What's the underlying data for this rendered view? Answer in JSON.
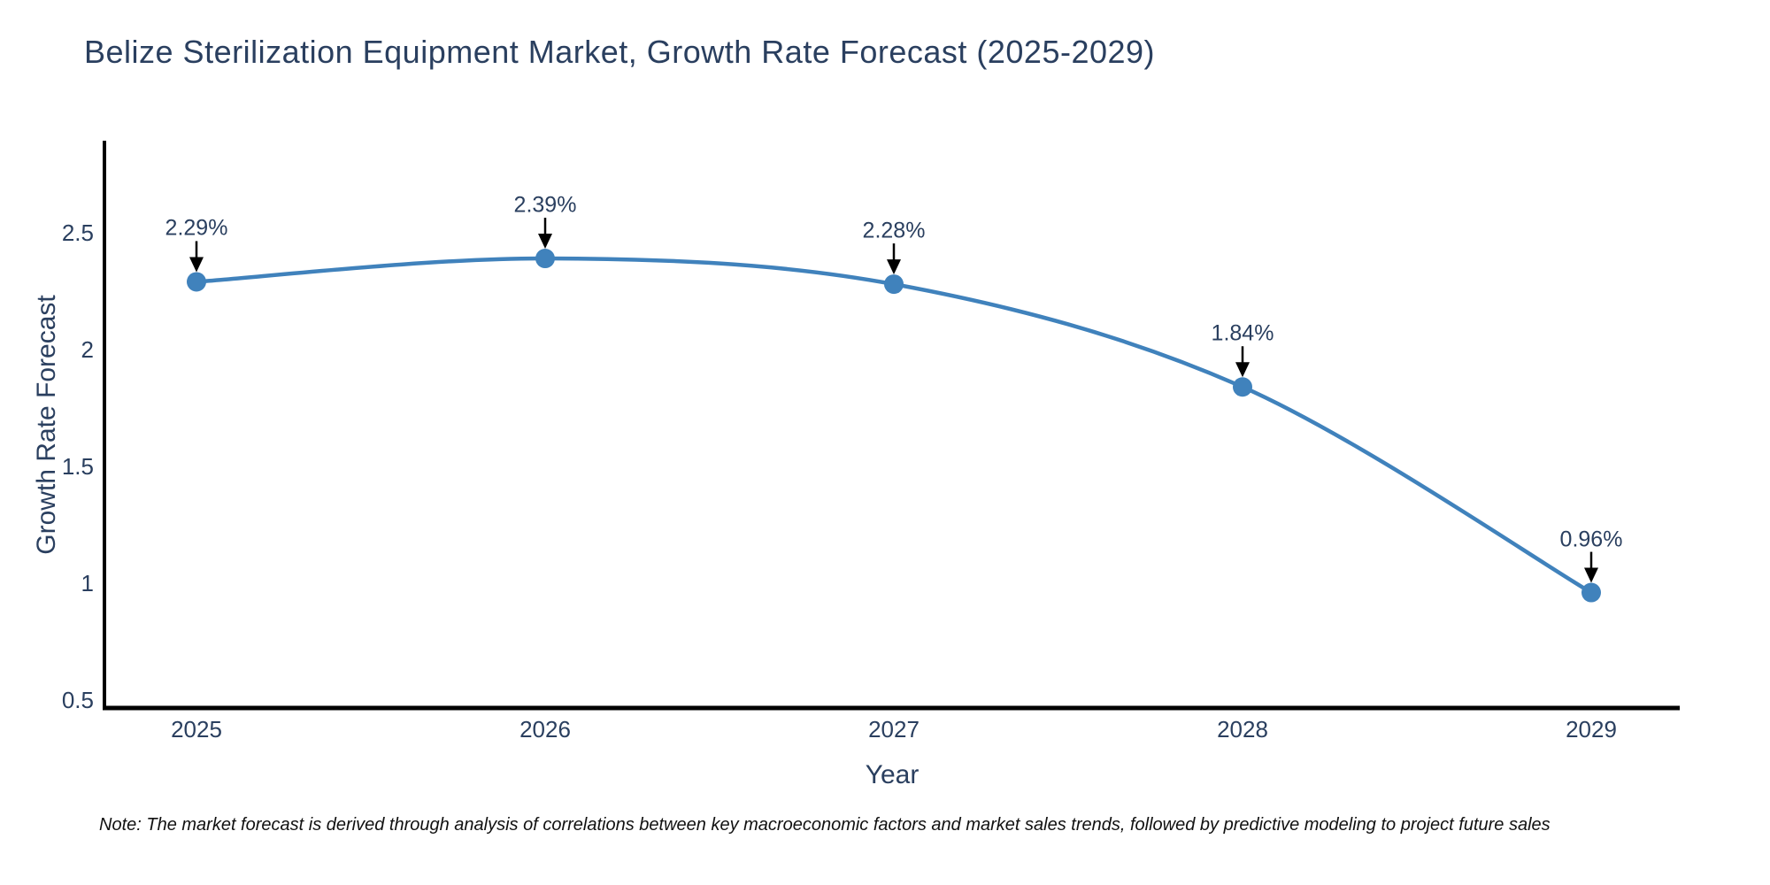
{
  "title": "Belize Sterilization Equipment Market, Growth Rate Forecast (2025-2029)",
  "note": "Note: The market forecast is derived through analysis of correlations between key macroeconomic factors and market sales trends, followed by predictive modeling to project future sales",
  "colors": {
    "line": "#4082bc",
    "marker": "#4082bc",
    "axis": "#000000",
    "text": "#2a3f5f",
    "arrow": "#000000",
    "background": "#ffffff"
  },
  "chart_data": {
    "type": "line",
    "title": "Belize Sterilization Equipment Market, Growth Rate Forecast (2025-2029)",
    "x": [
      2025,
      2026,
      2027,
      2028,
      2029
    ],
    "y": [
      2.29,
      2.39,
      2.28,
      1.84,
      0.96
    ],
    "point_labels": [
      "2.29%",
      "2.39%",
      "2.28%",
      "1.84%",
      "0.96%"
    ],
    "xticks": [
      "2025",
      "2026",
      "2027",
      "2028",
      "2029"
    ],
    "ytick_values": [
      2.5,
      2,
      1.5,
      1,
      0.5
    ],
    "yticks": [
      "2.5",
      "2",
      "1.5",
      "1",
      "0.5"
    ],
    "xlabel": "Year",
    "ylabel": "Growth Rate Forecast",
    "xlim": [
      2024.74,
      2029.25
    ],
    "ylim": [
      0.47,
      2.89
    ],
    "grid": false,
    "legend": false,
    "line_shape": "spline",
    "markers": true
  }
}
